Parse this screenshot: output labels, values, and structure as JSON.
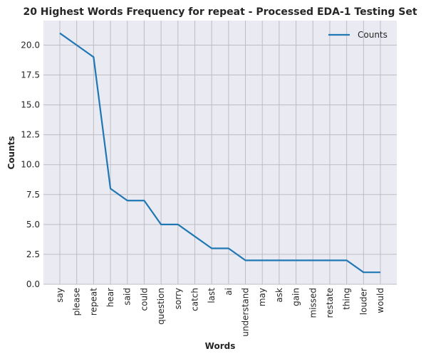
{
  "chart_data": {
    "type": "line",
    "title": "20 Highest Words Frequency for repeat - Processed EDA-1 Testing Set",
    "xlabel": "Words",
    "ylabel": "Counts",
    "categories": [
      "say",
      "please",
      "repeat",
      "hear",
      "said",
      "could",
      "question",
      "sorry",
      "catch",
      "last",
      "ai",
      "understand",
      "may",
      "ask",
      "gain",
      "missed",
      "restate",
      "thing",
      "louder",
      "would"
    ],
    "series": [
      {
        "name": "Counts",
        "values": [
          21,
          20,
          19,
          8,
          7,
          7,
          5,
          5,
          4,
          3,
          3,
          2,
          2,
          2,
          2,
          2,
          2,
          2,
          1,
          1
        ],
        "color": "#1f77b4"
      }
    ],
    "ylim": [
      0,
      22.05
    ],
    "yticks": [
      "0.0",
      "2.5",
      "5.0",
      "7.5",
      "10.0",
      "12.5",
      "15.0",
      "17.5",
      "20.0"
    ],
    "grid": true,
    "legend_position": "top-right",
    "colors": {
      "plot_background": "#eaeaf2",
      "grid": "#bdbdc2",
      "line": "#1f77b4"
    }
  }
}
